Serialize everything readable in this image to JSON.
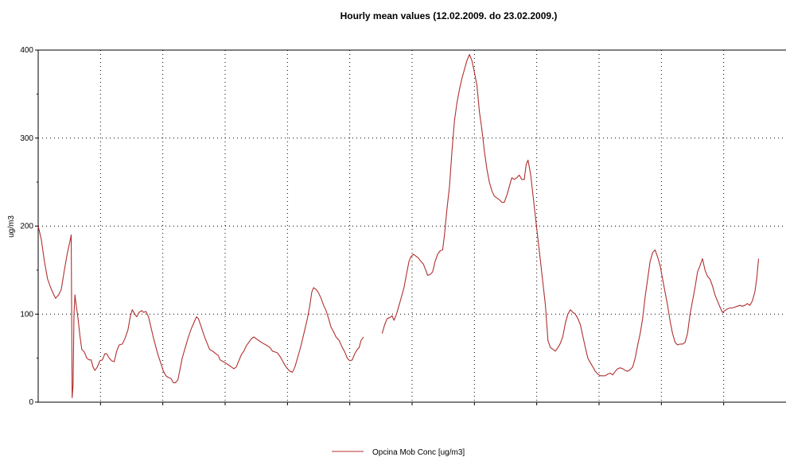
{
  "chart_data": {
    "type": "line",
    "title": "Hourly mean values (12.02.2009. do 23.02.2009.)",
    "ylabel": "ug/m3",
    "xlabel": "",
    "ylim": [
      0,
      400
    ],
    "yticks": [
      0,
      100,
      200,
      300,
      400
    ],
    "x_range_days": [
      0,
      12
    ],
    "grid": true,
    "legend_position": "bottom",
    "colors": {
      "series": "#b03030",
      "grid": "#000000",
      "axis": "#000000"
    },
    "series": [
      {
        "name": "Opcina Mob Conc [ug/m3]",
        "segments": [
          [
            [
              0.0,
              200
            ],
            [
              0.05,
              185
            ],
            [
              0.1,
              160
            ],
            [
              0.15,
              140
            ],
            [
              0.2,
              130
            ],
            [
              0.25,
              122
            ],
            [
              0.28,
              118
            ],
            [
              0.33,
              122
            ],
            [
              0.37,
              128
            ],
            [
              0.42,
              150
            ],
            [
              0.47,
              170
            ],
            [
              0.51,
              183
            ],
            [
              0.53,
              190
            ],
            [
              0.545,
              5
            ],
            [
              0.56,
              20
            ],
            [
              0.575,
              100
            ],
            [
              0.59,
              122
            ],
            [
              0.61,
              110
            ],
            [
              0.64,
              95
            ],
            [
              0.67,
              75
            ],
            [
              0.7,
              60
            ],
            [
              0.74,
              57
            ],
            [
              0.78,
              50
            ],
            [
              0.82,
              48
            ],
            [
              0.85,
              48
            ],
            [
              0.88,
              40
            ],
            [
              0.91,
              36
            ],
            [
              0.95,
              40
            ],
            [
              0.99,
              47
            ],
            [
              1.03,
              48
            ],
            [
              1.07,
              55
            ],
            [
              1.1,
              55
            ],
            [
              1.14,
              50
            ],
            [
              1.18,
              47
            ],
            [
              1.22,
              46
            ],
            [
              1.26,
              58
            ],
            [
              1.3,
              65
            ],
            [
              1.35,
              66
            ],
            [
              1.39,
              72
            ],
            [
              1.44,
              82
            ],
            [
              1.48,
              98
            ],
            [
              1.51,
              105
            ],
            [
              1.55,
              100
            ],
            [
              1.58,
              97
            ],
            [
              1.62,
              102
            ],
            [
              1.66,
              104
            ],
            [
              1.69,
              102
            ],
            [
              1.73,
              103
            ],
            [
              1.77,
              97
            ],
            [
              1.81,
              85
            ],
            [
              1.85,
              73
            ],
            [
              1.89,
              62
            ],
            [
              1.93,
              52
            ],
            [
              1.97,
              44
            ],
            [
              2.01,
              35
            ],
            [
              2.05,
              30
            ],
            [
              2.09,
              28
            ],
            [
              2.13,
              27
            ],
            [
              2.17,
              22
            ],
            [
              2.2,
              22
            ],
            [
              2.24,
              25
            ],
            [
              2.27,
              35
            ],
            [
              2.31,
              50
            ],
            [
              2.36,
              62
            ],
            [
              2.41,
              74
            ],
            [
              2.46,
              84
            ],
            [
              2.51,
              92
            ],
            [
              2.54,
              97
            ],
            [
              2.57,
              95
            ],
            [
              2.61,
              87
            ],
            [
              2.66,
              76
            ],
            [
              2.71,
              67
            ],
            [
              2.75,
              60
            ],
            [
              2.8,
              58
            ],
            [
              2.85,
              55
            ],
            [
              2.89,
              53
            ],
            [
              2.92,
              48
            ],
            [
              2.97,
              46
            ],
            [
              3.02,
              44
            ],
            [
              3.06,
              42
            ],
            [
              3.1,
              40
            ],
            [
              3.14,
              38
            ],
            [
              3.18,
              40
            ],
            [
              3.22,
              47
            ],
            [
              3.26,
              54
            ],
            [
              3.3,
              58
            ],
            [
              3.34,
              64
            ],
            [
              3.38,
              68
            ],
            [
              3.42,
              72
            ],
            [
              3.46,
              74
            ],
            [
              3.5,
              72
            ],
            [
              3.54,
              70
            ],
            [
              3.58,
              68
            ],
            [
              3.63,
              66
            ],
            [
              3.68,
              64
            ],
            [
              3.72,
              62
            ],
            [
              3.76,
              58
            ],
            [
              3.8,
              57
            ],
            [
              3.84,
              56
            ],
            [
              3.88,
              52
            ],
            [
              3.92,
              47
            ],
            [
              3.96,
              42
            ],
            [
              4.0,
              38
            ],
            [
              4.04,
              35
            ],
            [
              4.08,
              34
            ],
            [
              4.12,
              40
            ],
            [
              4.17,
              52
            ],
            [
              4.22,
              65
            ],
            [
              4.27,
              80
            ],
            [
              4.32,
              95
            ],
            [
              4.36,
              110
            ],
            [
              4.39,
              125
            ],
            [
              4.42,
              130
            ],
            [
              4.46,
              128
            ],
            [
              4.5,
              124
            ],
            [
              4.54,
              118
            ],
            [
              4.58,
              110
            ],
            [
              4.62,
              104
            ],
            [
              4.66,
              95
            ],
            [
              4.7,
              85
            ],
            [
              4.74,
              80
            ],
            [
              4.78,
              74
            ],
            [
              4.83,
              70
            ],
            [
              4.88,
              62
            ],
            [
              4.92,
              57
            ],
            [
              4.96,
              50
            ],
            [
              5.0,
              47
            ],
            [
              5.04,
              48
            ],
            [
              5.08,
              55
            ],
            [
              5.12,
              60
            ],
            [
              5.15,
              62
            ],
            [
              5.18,
              70
            ],
            [
              5.22,
              74
            ]
          ],
          [
            [
              5.52,
              78
            ],
            [
              5.56,
              88
            ],
            [
              5.6,
              95
            ],
            [
              5.64,
              96
            ],
            [
              5.68,
              98
            ],
            [
              5.71,
              93
            ],
            [
              5.75,
              100
            ],
            [
              5.79,
              110
            ],
            [
              5.83,
              120
            ],
            [
              5.87,
              130
            ],
            [
              5.91,
              145
            ],
            [
              5.95,
              160
            ],
            [
              5.98,
              165
            ],
            [
              6.02,
              168
            ],
            [
              6.06,
              166
            ],
            [
              6.1,
              164
            ],
            [
              6.14,
              160
            ],
            [
              6.18,
              157
            ],
            [
              6.22,
              150
            ],
            [
              6.25,
              144
            ],
            [
              6.29,
              145
            ],
            [
              6.33,
              148
            ],
            [
              6.37,
              160
            ],
            [
              6.41,
              168
            ],
            [
              6.45,
              172
            ],
            [
              6.49,
              173
            ],
            [
              6.52,
              190
            ],
            [
              6.56,
              220
            ],
            [
              6.6,
              245
            ],
            [
              6.64,
              285
            ],
            [
              6.68,
              320
            ],
            [
              6.72,
              340
            ],
            [
              6.76,
              355
            ],
            [
              6.8,
              368
            ],
            [
              6.84,
              378
            ],
            [
              6.88,
              388
            ],
            [
              6.92,
              395
            ],
            [
              6.96,
              388
            ],
            [
              7.0,
              375
            ],
            [
              7.04,
              360
            ],
            [
              7.08,
              330
            ],
            [
              7.12,
              310
            ],
            [
              7.16,
              285
            ],
            [
              7.2,
              265
            ],
            [
              7.24,
              250
            ],
            [
              7.28,
              240
            ],
            [
              7.32,
              234
            ],
            [
              7.36,
              232
            ],
            [
              7.4,
              230
            ],
            [
              7.44,
              227
            ],
            [
              7.48,
              227
            ],
            [
              7.52,
              235
            ],
            [
              7.56,
              245
            ],
            [
              7.6,
              255
            ],
            [
              7.64,
              253
            ],
            [
              7.68,
              255
            ],
            [
              7.72,
              258
            ],
            [
              7.76,
              253
            ],
            [
              7.8,
              253
            ],
            [
              7.83,
              270
            ],
            [
              7.86,
              275
            ],
            [
              7.9,
              260
            ],
            [
              7.94,
              235
            ],
            [
              7.98,
              210
            ],
            [
              8.02,
              185
            ],
            [
              8.06,
              160
            ],
            [
              8.1,
              135
            ],
            [
              8.14,
              110
            ],
            [
              8.18,
              70
            ],
            [
              8.22,
              62
            ],
            [
              8.26,
              60
            ],
            [
              8.3,
              58
            ],
            [
              8.34,
              62
            ],
            [
              8.38,
              67
            ],
            [
              8.42,
              75
            ],
            [
              8.46,
              90
            ],
            [
              8.5,
              100
            ],
            [
              8.54,
              105
            ],
            [
              8.58,
              102
            ],
            [
              8.62,
              100
            ],
            [
              8.66,
              95
            ],
            [
              8.7,
              88
            ],
            [
              8.74,
              75
            ],
            [
              8.78,
              62
            ],
            [
              8.82,
              50
            ],
            [
              8.86,
              45
            ],
            [
              8.9,
              40
            ],
            [
              8.94,
              35
            ],
            [
              8.98,
              32
            ],
            [
              9.02,
              30
            ],
            [
              9.06,
              30
            ],
            [
              9.1,
              30
            ],
            [
              9.14,
              32
            ],
            [
              9.18,
              33
            ],
            [
              9.22,
              31
            ],
            [
              9.26,
              35
            ],
            [
              9.3,
              38
            ],
            [
              9.34,
              39
            ],
            [
              9.38,
              38
            ],
            [
              9.42,
              36
            ],
            [
              9.46,
              35
            ],
            [
              9.5,
              37
            ],
            [
              9.54,
              40
            ],
            [
              9.58,
              50
            ],
            [
              9.62,
              65
            ],
            [
              9.66,
              78
            ],
            [
              9.7,
              95
            ],
            [
              9.74,
              120
            ],
            [
              9.78,
              140
            ],
            [
              9.82,
              160
            ],
            [
              9.86,
              170
            ],
            [
              9.9,
              173
            ],
            [
              9.94,
              165
            ],
            [
              9.98,
              155
            ],
            [
              10.02,
              140
            ],
            [
              10.06,
              125
            ],
            [
              10.1,
              110
            ],
            [
              10.14,
              92
            ],
            [
              10.18,
              78
            ],
            [
              10.22,
              68
            ],
            [
              10.26,
              65
            ],
            [
              10.3,
              66
            ],
            [
              10.34,
              66
            ],
            [
              10.38,
              68
            ],
            [
              10.42,
              78
            ],
            [
              10.46,
              100
            ],
            [
              10.5,
              115
            ],
            [
              10.54,
              130
            ],
            [
              10.58,
              148
            ],
            [
              10.62,
              155
            ],
            [
              10.66,
              163
            ],
            [
              10.7,
              150
            ],
            [
              10.74,
              143
            ],
            [
              10.78,
              140
            ],
            [
              10.82,
              132
            ],
            [
              10.86,
              122
            ],
            [
              10.9,
              115
            ],
            [
              10.94,
              108
            ],
            [
              10.98,
              102
            ],
            [
              11.02,
              104
            ],
            [
              11.06,
              106
            ],
            [
              11.1,
              107
            ],
            [
              11.14,
              107
            ],
            [
              11.18,
              108
            ],
            [
              11.22,
              109
            ],
            [
              11.26,
              110
            ],
            [
              11.3,
              109
            ],
            [
              11.34,
              110
            ],
            [
              11.38,
              112
            ],
            [
              11.42,
              110
            ],
            [
              11.46,
              115
            ],
            [
              11.5,
              125
            ],
            [
              11.53,
              140
            ],
            [
              11.56,
              163
            ]
          ]
        ]
      }
    ]
  }
}
